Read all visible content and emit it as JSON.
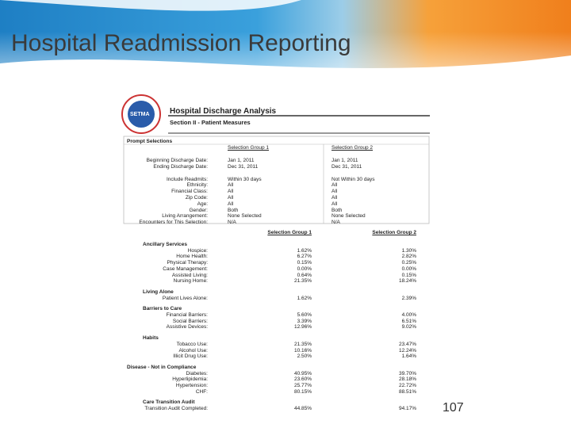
{
  "header": {
    "title": "Hospital Readmission Reporting"
  },
  "page_number": "107",
  "report": {
    "logo": "SETMA",
    "title": "Hospital Discharge Analysis",
    "subtitle": "Section II - Patient Measures",
    "prompt": {
      "heading": "Prompt Selections",
      "columns": [
        "Selection Group 1",
        "Selection Group 2"
      ],
      "rows": [
        [
          "Beginning Discharge Date:",
          "Jan 1, 2011",
          "Jan 1, 2011"
        ],
        [
          "Ending Discharge Date:",
          "Dec 31, 2011",
          "Dec 31, 2011"
        ],
        [
          "Include Readmits:",
          "Within 30 days",
          "Not Within 30 days"
        ],
        [
          "Ethnicity:",
          "All",
          "All"
        ],
        [
          "Financial Class:",
          "All",
          "All"
        ],
        [
          "Zip Code:",
          "All",
          "All"
        ],
        [
          "Age:",
          "All",
          "All"
        ],
        [
          "Gender:",
          "Both",
          "Both"
        ],
        [
          "Living Arrangement:",
          "None Selected",
          "None Selected"
        ],
        [
          "Encounters for This Selection:",
          "N/A",
          "N/A"
        ]
      ]
    },
    "measures": {
      "columns": [
        "Selection Group 1",
        "Selection Group 2"
      ],
      "sections": [
        {
          "heading": "Ancillary Services",
          "rows": [
            [
              "Hospice:",
              "1.62%",
              "1.30%"
            ],
            [
              "Home Health:",
              "6.27%",
              "2.82%"
            ],
            [
              "Physical Therapy:",
              "0.15%",
              "0.25%"
            ],
            [
              "Case Management:",
              "0.00%",
              "0.00%"
            ],
            [
              "Assisted Living:",
              "0.64%",
              "0.15%"
            ],
            [
              "Nursing Home:",
              "21.35%",
              "18.24%"
            ]
          ]
        },
        {
          "heading": "Living Alone",
          "rows": [
            [
              "Patient Lives Alone:",
              "1.62%",
              "2.39%"
            ]
          ]
        },
        {
          "heading": "Barriers to Care",
          "rows": [
            [
              "Financial Barriers:",
              "5.60%",
              "4.00%"
            ],
            [
              "Social Barriers:",
              "3.39%",
              "6.51%"
            ],
            [
              "Assistive Devices:",
              "12.96%",
              "9.02%"
            ]
          ]
        },
        {
          "heading": "Habits",
          "rows": [
            [
              "Tobacco Use:",
              "21.35%",
              "23.47%"
            ],
            [
              "Alcohol Use:",
              "10.16%",
              "12.24%"
            ],
            [
              "Illicit Drug Use:",
              "2.50%",
              "1.64%"
            ]
          ]
        },
        {
          "heading": "Disease - Not in Compliance",
          "rows": [
            [
              "Diabetes:",
              "40.95%",
              "39.70%"
            ],
            [
              "Hyperlipidemia:",
              "23.60%",
              "28.18%"
            ],
            [
              "Hypertension:",
              "25.77%",
              "22.72%"
            ],
            [
              "CHF:",
              "80.15%",
              "88.51%"
            ]
          ]
        },
        {
          "heading": "Care Transition Audit",
          "rows": [
            [
              "Transition Audit Completed:",
              "44.85%",
              "94.17%"
            ]
          ]
        }
      ]
    }
  }
}
